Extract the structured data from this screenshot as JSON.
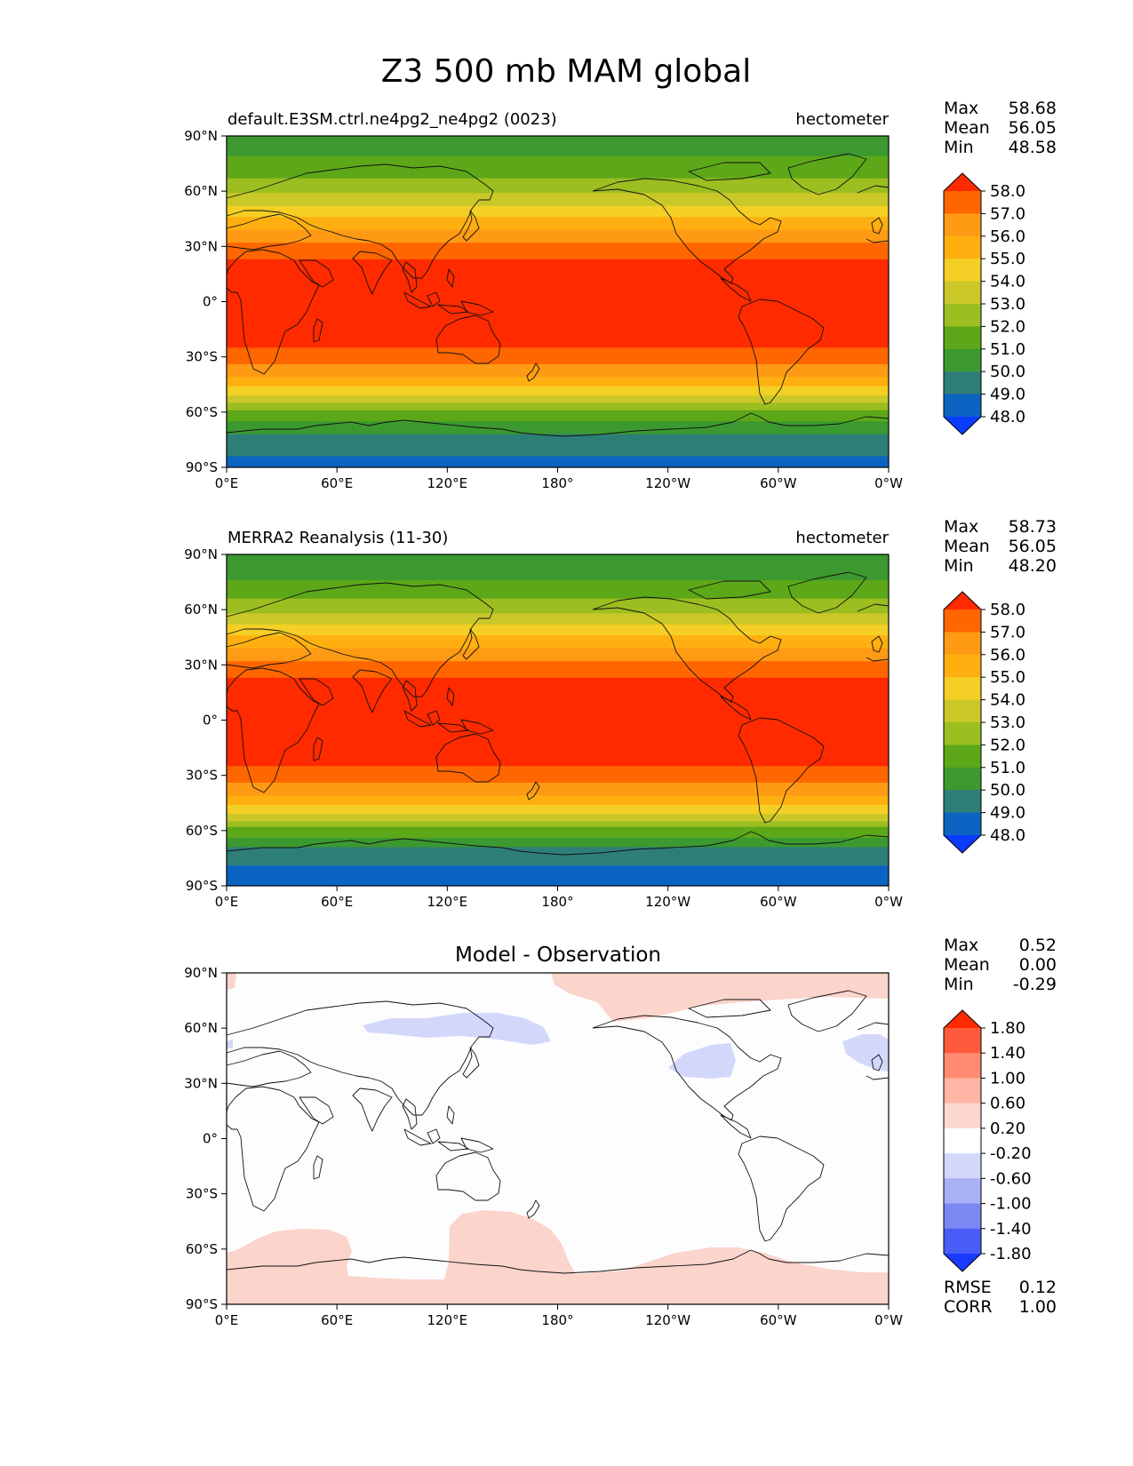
{
  "figure_title": "Z3 500 mb MAM global",
  "panels": [
    {
      "kind": "model",
      "title_left": "default.E3SM.ctrl.ne4pg2_ne4pg2 (0023)",
      "title_center": "",
      "title_right": "hectometer",
      "stats": [
        {
          "label": "Max",
          "value": "58.68"
        },
        {
          "label": "Mean",
          "value": "56.05"
        },
        {
          "label": "Min",
          "value": "48.58"
        }
      ]
    },
    {
      "kind": "obs",
      "title_left": "MERRA2 Reanalysis (11-30)",
      "title_center": "",
      "title_right": "hectometer",
      "stats": [
        {
          "label": "Max",
          "value": "58.73"
        },
        {
          "label": "Mean",
          "value": "56.05"
        },
        {
          "label": "Min",
          "value": "48.20"
        }
      ]
    },
    {
      "kind": "diff",
      "title_left": "",
      "title_center": "Model - Observation",
      "title_right": "",
      "stats": [
        {
          "label": "Max",
          "value": "0.52"
        },
        {
          "label": "Mean",
          "value": "0.00"
        },
        {
          "label": "Min",
          "value": "-0.29"
        }
      ],
      "extra_stats": [
        {
          "label": "RMSE",
          "value": "0.12"
        },
        {
          "label": "CORR",
          "value": "1.00"
        }
      ]
    }
  ],
  "lat_ticks": [
    "90°N",
    "60°N",
    "30°N",
    "0°",
    "30°S",
    "60°S",
    "90°S"
  ],
  "lon_ticks": [
    "0°E",
    "60°E",
    "120°E",
    "180°",
    "120°W",
    "60°W",
    "0°W"
  ],
  "colorbars": {
    "field": {
      "labels": [
        "58.0",
        "57.0",
        "56.0",
        "55.0",
        "54.0",
        "53.0",
        "52.0",
        "51.0",
        "50.0",
        "49.0",
        "48.0"
      ],
      "colors": [
        "#ff2a00",
        "#ff6600",
        "#ff9a14",
        "#ffb010",
        "#f4cf25",
        "#c9c828",
        "#9cbe20",
        "#5ca818",
        "#3c9930",
        "#2e7e78",
        "#0b63c2",
        "#0a3cff"
      ]
    },
    "diff": {
      "labels": [
        "1.80",
        "1.40",
        "1.00",
        "0.60",
        "0.20",
        "-0.20",
        "-0.60",
        "-1.00",
        "-1.40",
        "-1.80"
      ],
      "colors": [
        "#ff2a00",
        "#ff5a3c",
        "#ff8a70",
        "#ffb4a4",
        "#fdd8d0",
        "#ffffff",
        "#d3d8fb",
        "#a8b0f6",
        "#7b87f3",
        "#4a5cf7",
        "#1a3aff"
      ]
    }
  },
  "chart_data": [
    {
      "type": "heatmap",
      "title": "default.E3SM.ctrl.ne4pg2_ne4pg2 (0023)",
      "units": "hectometer",
      "field": "Z3 500 mb MAM",
      "x": [
        "0°E",
        "60°E",
        "120°E",
        "180°",
        "120°W",
        "60°W",
        "0°W"
      ],
      "y": [
        "90°N",
        "60°N",
        "30°N",
        "0°",
        "30°S",
        "60°S",
        "90°S"
      ],
      "zonal_profile": {
        "lat": [
          90,
          80,
          70,
          60,
          50,
          40,
          30,
          20,
          10,
          0,
          -10,
          -20,
          -30,
          -40,
          -50,
          -60,
          -70,
          -80,
          -90
        ],
        "value": [
          50.4,
          50.9,
          51.7,
          52.8,
          54.3,
          55.9,
          57.3,
          58.3,
          58.6,
          58.6,
          58.6,
          58.4,
          57.6,
          56.1,
          54.3,
          51.8,
          50.2,
          49.3,
          48.6
        ]
      },
      "levels": [
        48,
        49,
        50,
        51,
        52,
        53,
        54,
        55,
        56,
        57,
        58
      ],
      "max": 58.68,
      "mean": 56.05,
      "min": 48.58
    },
    {
      "type": "heatmap",
      "title": "MERRA2 Reanalysis (11-30)",
      "units": "hectometer",
      "field": "Z3 500 mb MAM",
      "x": [
        "0°E",
        "60°E",
        "120°E",
        "180°",
        "120°W",
        "60°W",
        "0°W"
      ],
      "y": [
        "90°N",
        "60°N",
        "30°N",
        "0°",
        "30°S",
        "60°S",
        "90°S"
      ],
      "zonal_profile": {
        "lat": [
          90,
          80,
          70,
          60,
          50,
          40,
          30,
          20,
          10,
          0,
          -10,
          -20,
          -30,
          -40,
          -50,
          -60,
          -70,
          -80,
          -90
        ],
        "value": [
          50.2,
          50.6,
          51.5,
          52.7,
          54.3,
          55.9,
          57.3,
          58.3,
          58.6,
          58.6,
          58.6,
          58.4,
          57.6,
          56.1,
          54.2,
          51.6,
          49.9,
          48.9,
          48.2
        ]
      },
      "levels": [
        48,
        49,
        50,
        51,
        52,
        53,
        54,
        55,
        56,
        57,
        58
      ],
      "max": 58.73,
      "mean": 56.05,
      "min": 48.2
    },
    {
      "type": "heatmap",
      "title": "Model - Observation",
      "x": [
        "0°E",
        "60°E",
        "120°E",
        "180°",
        "120°W",
        "60°W",
        "0°W"
      ],
      "y": [
        "90°N",
        "60°N",
        "30°N",
        "0°",
        "30°S",
        "60°S",
        "90°S"
      ],
      "regions": [
        {
          "range": "0.20 to 0.60",
          "area": "Arctic, 180° to 0°W north of about 70°N"
        },
        {
          "range": "0.20 to 0.60",
          "area": "Southern Ocean / Antarctica, south of about 55°S"
        },
        {
          "range": "-0.60 to -0.20",
          "area": "Northern Asia near 60°N"
        },
        {
          "range": "-0.60 to -0.20",
          "area": "Northeast Pacific near 45°N"
        },
        {
          "range": "-0.60 to -0.20",
          "area": "North Atlantic near 45°N"
        }
      ],
      "levels": [
        -1.8,
        -1.4,
        -1.0,
        -0.6,
        -0.2,
        0.2,
        0.6,
        1.0,
        1.4,
        1.8
      ],
      "max": 0.52,
      "mean": 0.0,
      "min": -0.29,
      "rmse": 0.12,
      "corr": 1.0
    }
  ]
}
